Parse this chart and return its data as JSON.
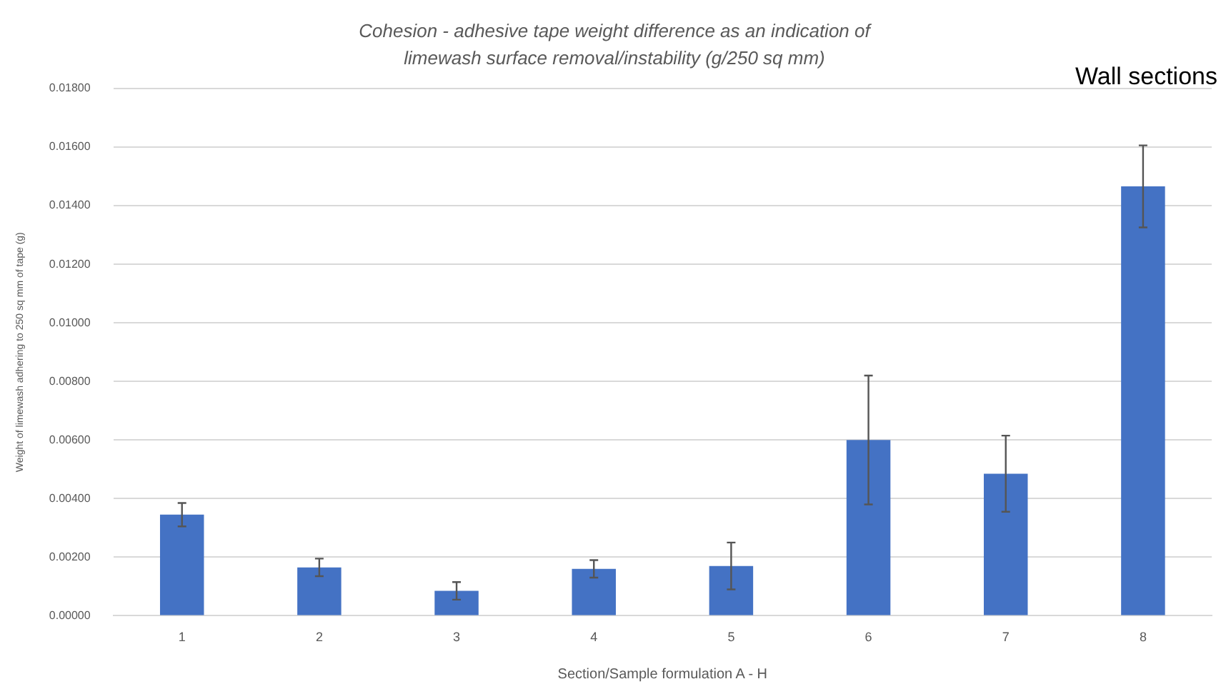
{
  "chart_data": {
    "type": "bar",
    "title": "Cohesion - adhesive tape weight difference as an indication of limewash surface removal/instability (g/250 sq mm)",
    "xlabel": "Section/Sample formulation A - H",
    "ylabel": "Weight of limewash adhering to 250 sq mm of tape (g)",
    "annotations": [
      "Wall sections"
    ],
    "categories": [
      "1",
      "2",
      "3",
      "4",
      "5",
      "6",
      "7",
      "8"
    ],
    "values": [
      0.00345,
      0.00165,
      0.00085,
      0.0016,
      0.0017,
      0.006,
      0.00485,
      0.01466
    ],
    "errors": [
      0.0004,
      0.0003,
      0.0003,
      0.0003,
      0.0008,
      0.0022,
      0.0013,
      0.0014
    ],
    "color": "#4472c4",
    "ylim": [
      0,
      0.018
    ],
    "yticks": [
      {
        "value": 0,
        "label": "0.00000"
      },
      {
        "value": 0.002,
        "label": "0.00200"
      },
      {
        "value": 0.004,
        "label": "0.00400"
      },
      {
        "value": 0.006,
        "label": "0.00600"
      },
      {
        "value": 0.008,
        "label": "0.00800"
      },
      {
        "value": 0.01,
        "label": "0.01000"
      },
      {
        "value": 0.012,
        "label": "0.01200"
      },
      {
        "value": 0.014,
        "label": "0.01400"
      },
      {
        "value": 0.016,
        "label": "0.01600"
      },
      {
        "value": 0.018,
        "label": "0.01800"
      }
    ],
    "grid": "y",
    "legend": false
  }
}
